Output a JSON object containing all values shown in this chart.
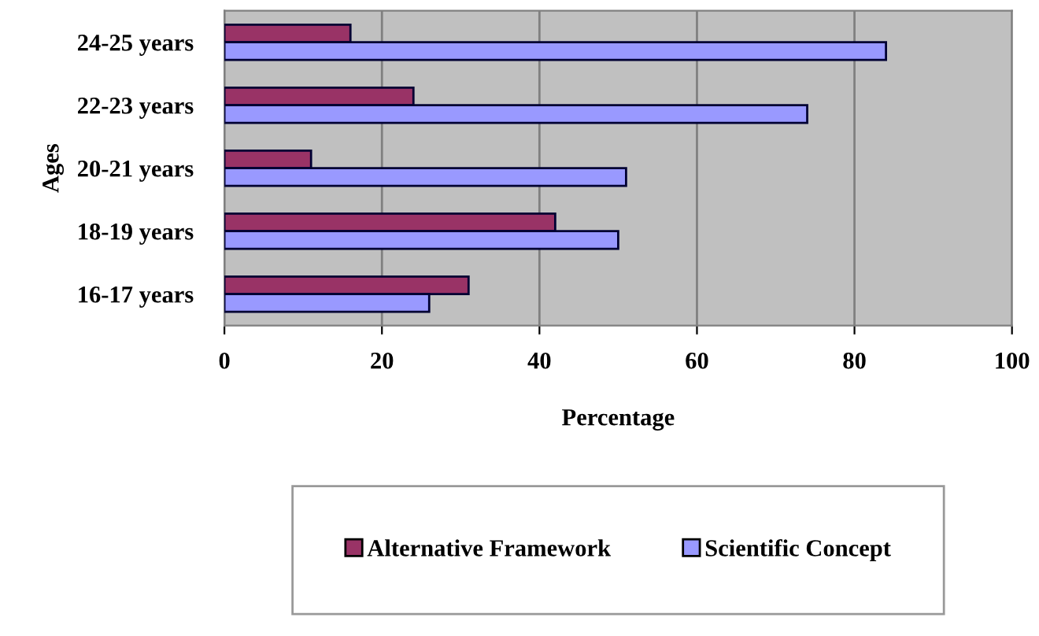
{
  "chart_data": {
    "type": "bar",
    "orientation": "horizontal",
    "xlabel": "Percentage",
    "ylabel": "Ages",
    "categories": [
      "24-25 years",
      "22-23 years",
      "20-21 years",
      "18-19 years",
      "16-17 years"
    ],
    "series": [
      {
        "name": "Alternative Framework",
        "color": "#993366",
        "values": [
          16,
          24,
          11,
          42,
          31
        ]
      },
      {
        "name": "Scientific Concept",
        "color": "#9999ff",
        "values": [
          84,
          74,
          51,
          50,
          26
        ]
      }
    ],
    "xlim": [
      0,
      100
    ],
    "xticks": [
      0,
      20,
      40,
      60,
      80,
      100
    ],
    "grid": "x",
    "legend": "bottom"
  }
}
